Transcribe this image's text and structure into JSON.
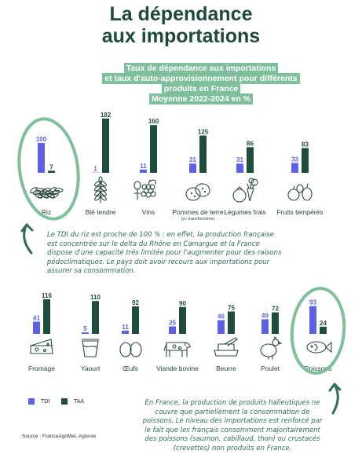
{
  "title": [
    "La dépendance",
    "aux importations"
  ],
  "subtitle": [
    "Taux de dépendance aux importations",
    "et taux d'auto-approvisionnement pour différents produits en France",
    "Moyenne 2022-2024 en %"
  ],
  "colors": {
    "tdi": "#5c62e8",
    "taa": "#1d4d3c",
    "accent": "#7fbf9c"
  },
  "chart_data": [
    {
      "type": "bar",
      "categories": [
        "Riz",
        "Blé tendre",
        "Vins",
        "Pommes de terre",
        "Légumes frais",
        "Fruits tempérés"
      ],
      "category_notes": [
        "",
        "",
        "",
        "(yc transformées)",
        "",
        ""
      ],
      "series": [
        {
          "name": "TDI",
          "values": [
            100,
            1,
            11,
            31,
            31,
            33
          ]
        },
        {
          "name": "TAA",
          "values": [
            7,
            182,
            160,
            125,
            86,
            83
          ]
        }
      ]
    },
    {
      "type": "bar",
      "categories": [
        "Fromage",
        "Yaourt",
        "Œufs",
        "Viande bovine",
        "Beurre",
        "Poulet",
        "Poissons"
      ],
      "series": [
        {
          "name": "TDI",
          "values": [
            41,
            5,
            11,
            25,
            46,
            49,
            93
          ]
        },
        {
          "name": "TAA",
          "values": [
            116,
            110,
            92,
            90,
            75,
            72,
            24
          ]
        }
      ]
    }
  ],
  "icons": [
    "rice-icon",
    "wheat-icon",
    "grapes-icon",
    "potato-icon",
    "vegetables-icon",
    "fruits-icon",
    "cheese-icon",
    "yogurt-icon",
    "eggs-icon",
    "cow-icon",
    "butter-icon",
    "chicken-icon",
    "fish-icon"
  ],
  "legend": {
    "tdi": "TDI",
    "taa": "TAA"
  },
  "note_rice": "Le TDI du riz est proche de 100 % : en effet, la production française est concentrée sur le delta du Rhône en Camargue et la France dispose d'une capacité très limitée pour l'augmenter pour des raisons pédoclimatiques. Le pays doit avoir recours aux importations pour assurer sa consommation.",
  "note_fish": "En France, la production de produits halieutiques ne couvre que partiellement la consommation de poissons. Le niveau des importations est renforcé par le fait que les français consomment majoritairement des poissons (saumon, cabillaud, thon) ou crustacés (crevettes) non produits en France.",
  "source": "Source : FranceAgriMer, Agreste"
}
